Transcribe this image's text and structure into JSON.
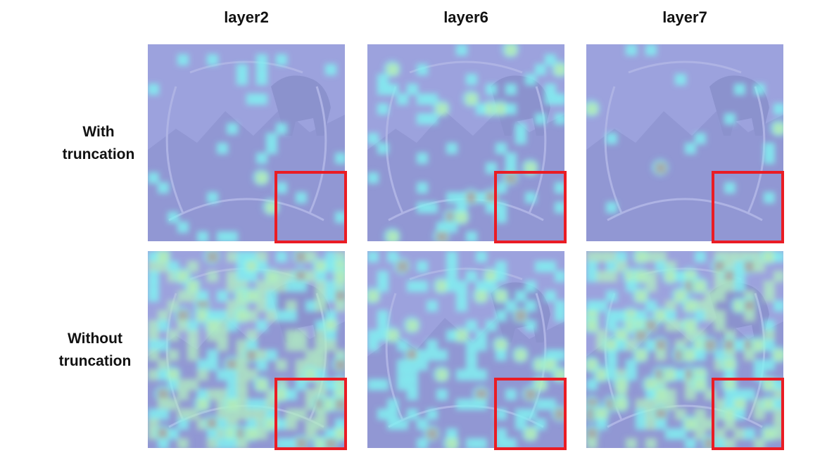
{
  "columns": [
    {
      "title": "layer2"
    },
    {
      "title": "layer6"
    },
    {
      "title": "layer7"
    }
  ],
  "rows": [
    {
      "label_line1": "With",
      "label_line2": "truncation"
    },
    {
      "label_line1": "Without",
      "label_line2": "truncation"
    }
  ],
  "colors": {
    "overlay_base": "#8f96d9",
    "highlight_box": "#ea1c24",
    "heat_cyan": "#6ff0f0",
    "heat_yellow": "#f5e65a",
    "heat_red": "#d83a2a",
    "heat_green": "#a8f0b8"
  }
}
